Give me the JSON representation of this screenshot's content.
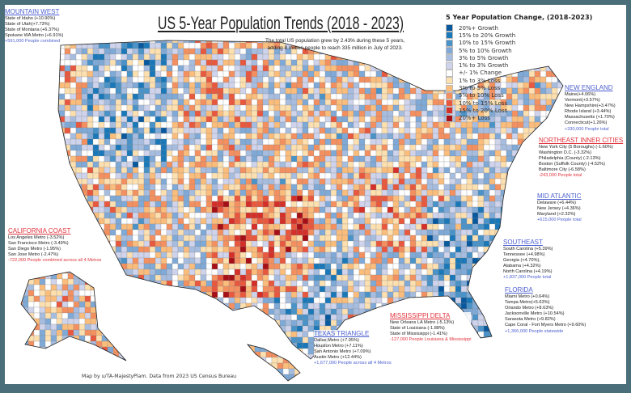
{
  "title": "US 5-Year Population Trends (2018 - 2023)",
  "subtitle": [
    "The total US population grew by 2.43% during these 5 years,",
    "adding 8 million people to reach 335 million in July of 2023."
  ],
  "legend": {
    "title": "5 Year Population Change, (2018-2023)",
    "items": [
      {
        "label": "20%+ Growth",
        "color": "#08589e"
      },
      {
        "label": "15% to 20% Growth",
        "color": "#1a78b8"
      },
      {
        "label": "10% to 15% Growth",
        "color": "#4a93c8"
      },
      {
        "label": "5% to 10% Growth",
        "color": "#7fa9d6"
      },
      {
        "label": "3% to 5% Growth",
        "color": "#a7bde0"
      },
      {
        "label": "1% to 3% Growth",
        "color": "#cfd4ec"
      },
      {
        "label": "+/- 1% Change",
        "color": "#ffffff"
      },
      {
        "label": "1% to 3% Loss",
        "color": "#fde0b0"
      },
      {
        "label": "3% to 5% Loss",
        "color": "#fbbd7c"
      },
      {
        "label": "5% to 10% Loss",
        "color": "#f49060"
      },
      {
        "label": "10% to 15% Loss",
        "color": "#e8583e"
      },
      {
        "label": "15% to 20% Loss",
        "color": "#d42f28"
      },
      {
        "label": "20%+ Loss",
        "color": "#a50f15"
      }
    ]
  },
  "notes": {
    "mountain_west": {
      "heading": "MOUNTAIN WEST",
      "lines": [
        "State of Idaho (+10.90%)",
        "State of Utah(+7.73%)",
        "State of Montana (+6.37%)",
        "Spokane WA Metro (+6.91%)"
      ],
      "total": "+591,000 People combined"
    },
    "new_england": {
      "heading": "NEW ENGLAND",
      "lines": [
        "Maine(+4.06%)",
        "Vermont(+3.57%)",
        "New Hampshire(+3.47%)",
        "Rhode Island (+3.44%)",
        "Massachusetts (+1.70%)",
        "Connecticut(+1.26%)"
      ],
      "total": "+330,000 People total"
    },
    "northeast": {
      "heading": "NORTHEAST INNER CITIES",
      "lines": [
        "New York City (5 Boroughs) (-1.60%)",
        "Washington D.C. (-3.32%)",
        "Philadelphia (County) (-2.13%)",
        "Boston (Suffolk County) (-4.52%)",
        "Baltimore City (-6.58%)"
      ],
      "total": "-243,000 People total"
    },
    "mid_atlantic": {
      "heading": "MID ATLANTIC",
      "lines": [
        "Delaware (+6.44%)",
        "New Jersey (+4.36%)",
        "Maryland (+2.32%)"
      ],
      "total": "+615,000 People total"
    },
    "california": {
      "heading": "CALIFORNIA COAST",
      "lines": [
        "Los Angeles Metro (-3.52%)",
        "San Francisco Metro (-3.49%)",
        "San Diego Metro (-1.95%)",
        "San Jose Metro (-2.47%)"
      ],
      "total": "-722,000 People combined across all 4 Metros"
    },
    "southeast": {
      "heading": "SOUTHEAST",
      "lines": [
        "South Carolina (+5.39%)",
        "Tennessee (+4.98%)",
        "Georgia (+4.70%),",
        "Alabama (+4.32%)",
        "North Carolina (+4.19%)"
      ],
      "total": "+1,837,000 People total"
    },
    "florida": {
      "heading": "FLORIDA",
      "lines": [
        "Miami Metro (+0.64%)",
        "Tampa Metro(+5.63%)",
        "Orlando Metro (+8.63%)",
        "Jacksonville Metro (+10.54%)",
        "Sarasota Metro (+9.82%)",
        "Cape Coral - Fort Myers Metro (+9.60%)"
      ],
      "total": "+1,366,000 People statewide"
    },
    "texas": {
      "heading": "TEXAS TRIANGLE",
      "lines": [
        "Dallas Metro (+7.95%)",
        "Houston Metro (+7.11%)",
        "San Antonio Metro (+7.09%)",
        "Austin Metro (+12.44%)"
      ],
      "total": "+1,677,000 People across all 4 Metros"
    },
    "mississippi": {
      "heading": "MISSISSIPPI DELTA",
      "lines": [
        "New Orleans LA Metro (-5.13%)",
        "State of Louisiana (-1.88%)",
        "State of Mississippi (-1.41%)"
      ],
      "total": "-127,000 People Louisiana & Mississippi"
    }
  },
  "credit": "Map by u/TA-MajestyPlam. Data from 2023 US Census Bureau",
  "frame_color": "#4a6e7a"
}
